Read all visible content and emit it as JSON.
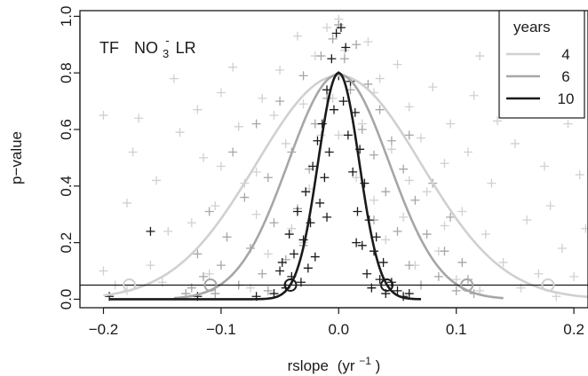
{
  "chart_data": {
    "type": "scatter",
    "title": "",
    "annotation": {
      "prefix": "TF",
      "species": "NO",
      "sub": "3",
      "sup": "-",
      "suffix": "LR"
    },
    "xlabel": {
      "text": "rslope",
      "unit_open": "(yr",
      "unit_exp": "−1",
      "unit_close": ")"
    },
    "ylabel": "p−value",
    "xlim": [
      -0.22,
      0.212
    ],
    "ylim": [
      -0.03,
      1.02
    ],
    "x_ticks": [
      "−0.2",
      "−0.1",
      "0.0",
      "0.1",
      "0.2"
    ],
    "x_tick_values": [
      -0.2,
      -0.1,
      0.0,
      0.1,
      0.2
    ],
    "y_ticks": [
      "0.0",
      "0.2",
      "0.4",
      "0.6",
      "0.8",
      "1.0"
    ],
    "y_tick_values": [
      0.0,
      0.2,
      0.4,
      0.6,
      0.8,
      1.0
    ],
    "reference_line_y": 0.05,
    "grid": false,
    "legend": {
      "title": "years",
      "placement": "top-right"
    },
    "colors": {
      "4": "#d0d0d0",
      "6": "#a6a6a6",
      "10": "#1a1a1a"
    },
    "series": [
      {
        "name": "4",
        "peak_p": 0.79,
        "sigma": 0.07,
        "curve_x_range": [
          -0.2,
          0.212
        ],
        "circles_x": [
          -0.178,
          0.178
        ],
        "points": [
          [
            -0.2,
            0.1
          ],
          [
            -0.2,
            0.65
          ],
          [
            -0.19,
            0.05
          ],
          [
            -0.18,
            0.03
          ],
          [
            -0.175,
            0.52
          ],
          [
            -0.17,
            0.64
          ],
          [
            -0.16,
            0.12
          ],
          [
            -0.155,
            0.42
          ],
          [
            -0.15,
            0.06
          ],
          [
            -0.14,
            0.78
          ],
          [
            -0.135,
            0.59
          ],
          [
            -0.13,
            0.02
          ],
          [
            -0.125,
            0.27
          ],
          [
            -0.12,
            0.67
          ],
          [
            -0.115,
            0.5
          ],
          [
            -0.11,
            0.09
          ],
          [
            -0.105,
            0.33
          ],
          [
            -0.1,
            0.73
          ],
          [
            -0.095,
            0.22
          ],
          [
            -0.09,
            0.82
          ],
          [
            -0.085,
            0.61
          ],
          [
            -0.08,
            0.41
          ],
          [
            -0.075,
            0.04
          ],
          [
            -0.07,
            0.45
          ],
          [
            -0.065,
            0.71
          ],
          [
            -0.06,
            0.16
          ],
          [
            -0.055,
            0.65
          ],
          [
            -0.05,
            0.81
          ],
          [
            -0.045,
            0.55
          ],
          [
            -0.04,
            0.25
          ],
          [
            -0.035,
            0.93
          ],
          [
            -0.03,
            0.69
          ],
          [
            -0.025,
            0.39
          ],
          [
            -0.02,
            0.86
          ],
          [
            -0.015,
            0.58
          ],
          [
            -0.01,
            0.96
          ],
          [
            -0.005,
            0.71
          ],
          [
            0.0,
            0.99
          ],
          [
            0.005,
            0.88
          ],
          [
            0.01,
            0.77
          ],
          [
            0.015,
            0.43
          ],
          [
            0.02,
            0.62
          ],
          [
            0.025,
            0.91
          ],
          [
            0.03,
            0.35
          ],
          [
            0.035,
            0.78
          ],
          [
            0.04,
            0.21
          ],
          [
            0.045,
            0.53
          ],
          [
            0.05,
            0.83
          ],
          [
            0.055,
            0.29
          ],
          [
            0.06,
            0.68
          ],
          [
            0.065,
            0.12
          ],
          [
            0.07,
            0.57
          ],
          [
            0.075,
            0.38
          ],
          [
            0.08,
            0.75
          ],
          [
            0.085,
            0.17
          ],
          [
            0.09,
            0.48
          ],
          [
            0.095,
            0.62
          ],
          [
            0.1,
            0.07
          ],
          [
            0.105,
            0.31
          ],
          [
            0.11,
            0.52
          ],
          [
            0.115,
            0.72
          ],
          [
            0.12,
            0.03
          ],
          [
            0.125,
            0.23
          ],
          [
            0.13,
            0.41
          ],
          [
            0.135,
            0.63
          ],
          [
            0.14,
            0.13
          ],
          [
            0.145,
            0.79
          ],
          [
            0.15,
            0.55
          ],
          [
            0.155,
            0.04
          ],
          [
            0.16,
            0.28
          ],
          [
            0.165,
            0.68
          ],
          [
            0.17,
            0.09
          ],
          [
            0.175,
            0.47
          ],
          [
            0.18,
            0.33
          ],
          [
            0.185,
            0.01
          ],
          [
            0.19,
            0.18
          ],
          [
            0.195,
            0.62
          ],
          [
            0.2,
            0.08
          ],
          [
            0.205,
            0.44
          ],
          [
            0.21,
            0.25
          ],
          [
            -0.145,
            0.24
          ],
          [
            -0.07,
            0.3
          ],
          [
            0.06,
            0.42
          ],
          [
            0.12,
            0.86
          ],
          [
            -0.03,
            0.2
          ],
          [
            0.03,
            0.73
          ],
          [
            -0.1,
            0.47
          ],
          [
            0.09,
            0.26
          ],
          [
            0.0,
            0.58
          ],
          [
            -0.18,
            0.34
          ]
        ]
      },
      {
        "name": "6",
        "peak_p": 0.795,
        "sigma": 0.043,
        "curve_x_range": [
          -0.14,
          0.14
        ],
        "circles_x": [
          -0.109,
          0.109
        ],
        "points": [
          [
            -0.13,
            0.02
          ],
          [
            -0.125,
            0.04
          ],
          [
            -0.12,
            0.16
          ],
          [
            -0.115,
            0.08
          ],
          [
            -0.11,
            0.31
          ],
          [
            -0.105,
            0.02
          ],
          [
            -0.1,
            0.12
          ],
          [
            -0.095,
            0.22
          ],
          [
            -0.09,
            0.52
          ],
          [
            -0.085,
            0.05
          ],
          [
            -0.08,
            0.36
          ],
          [
            -0.075,
            0.18
          ],
          [
            -0.07,
            0.62
          ],
          [
            -0.065,
            0.09
          ],
          [
            -0.06,
            0.43
          ],
          [
            -0.055,
            0.27
          ],
          [
            -0.05,
            0.7
          ],
          [
            -0.045,
            0.14
          ],
          [
            -0.04,
            0.52
          ],
          [
            -0.035,
            0.32
          ],
          [
            -0.03,
            0.79
          ],
          [
            -0.025,
            0.46
          ],
          [
            -0.02,
            0.62
          ],
          [
            -0.015,
            0.86
          ],
          [
            -0.01,
            0.71
          ],
          [
            -0.005,
            0.92
          ],
          [
            0.0,
            0.97
          ],
          [
            0.005,
            0.85
          ],
          [
            0.01,
            0.74
          ],
          [
            0.015,
            0.9
          ],
          [
            0.02,
            0.6
          ],
          [
            0.025,
            0.76
          ],
          [
            0.03,
            0.51
          ],
          [
            0.035,
            0.67
          ],
          [
            0.04,
            0.38
          ],
          [
            0.045,
            0.56
          ],
          [
            0.05,
            0.24
          ],
          [
            0.055,
            0.46
          ],
          [
            0.06,
            0.12
          ],
          [
            0.065,
            0.35
          ],
          [
            0.07,
            0.05
          ],
          [
            0.075,
            0.23
          ],
          [
            0.08,
            0.41
          ],
          [
            0.085,
            0.08
          ],
          [
            0.09,
            0.17
          ],
          [
            0.095,
            0.29
          ],
          [
            0.1,
            0.03
          ],
          [
            0.105,
            0.13
          ],
          [
            0.11,
            0.07
          ],
          [
            0.115,
            0.02
          ],
          [
            -0.06,
            0.03
          ],
          [
            0.03,
            0.28
          ],
          [
            -0.03,
            0.19
          ],
          [
            0.06,
            0.58
          ]
        ]
      },
      {
        "name": "10",
        "peak_p": 0.8,
        "sigma": 0.0175,
        "curve_x_range": [
          -0.195,
          0.07
        ],
        "circles_x": [
          -0.041,
          0.041
        ],
        "points": [
          [
            -0.195,
            0.01
          ],
          [
            -0.16,
            0.24
          ],
          [
            -0.12,
            0.01
          ],
          [
            -0.07,
            0.01
          ],
          [
            -0.055,
            0.02
          ],
          [
            -0.05,
            0.1
          ],
          [
            -0.048,
            0.13
          ],
          [
            -0.045,
            0.04
          ],
          [
            -0.042,
            0.23
          ],
          [
            -0.04,
            0.08
          ],
          [
            -0.038,
            0.16
          ],
          [
            -0.035,
            0.31
          ],
          [
            -0.032,
            0.06
          ],
          [
            -0.03,
            0.21
          ],
          [
            -0.028,
            0.38
          ],
          [
            -0.026,
            0.11
          ],
          [
            -0.024,
            0.27
          ],
          [
            -0.022,
            0.47
          ],
          [
            -0.02,
            0.15
          ],
          [
            -0.018,
            0.56
          ],
          [
            -0.016,
            0.34
          ],
          [
            -0.014,
            0.62
          ],
          [
            -0.012,
            0.43
          ],
          [
            -0.01,
            0.74
          ],
          [
            -0.008,
            0.52
          ],
          [
            -0.006,
            0.85
          ],
          [
            -0.004,
            0.67
          ],
          [
            -0.002,
            0.94
          ],
          [
            0.0,
            0.79
          ],
          [
            0.002,
            0.96
          ],
          [
            0.004,
            0.7
          ],
          [
            0.006,
            0.89
          ],
          [
            0.008,
            0.58
          ],
          [
            0.01,
            0.77
          ],
          [
            0.012,
            0.45
          ],
          [
            0.014,
            0.66
          ],
          [
            0.016,
            0.31
          ],
          [
            0.018,
            0.53
          ],
          [
            0.02,
            0.19
          ],
          [
            0.022,
            0.41
          ],
          [
            0.024,
            0.09
          ],
          [
            0.026,
            0.28
          ],
          [
            0.028,
            0.04
          ],
          [
            0.03,
            0.17
          ],
          [
            0.032,
            0.22
          ],
          [
            0.035,
            0.07
          ],
          [
            0.038,
            0.13
          ],
          [
            0.04,
            0.02
          ],
          [
            0.045,
            0.06
          ],
          [
            0.05,
            0.03
          ],
          [
            0.055,
            0.01
          ],
          [
            0.06,
            0.02
          ],
          [
            0.015,
            0.2
          ],
          [
            -0.01,
            0.29
          ]
        ]
      }
    ]
  }
}
